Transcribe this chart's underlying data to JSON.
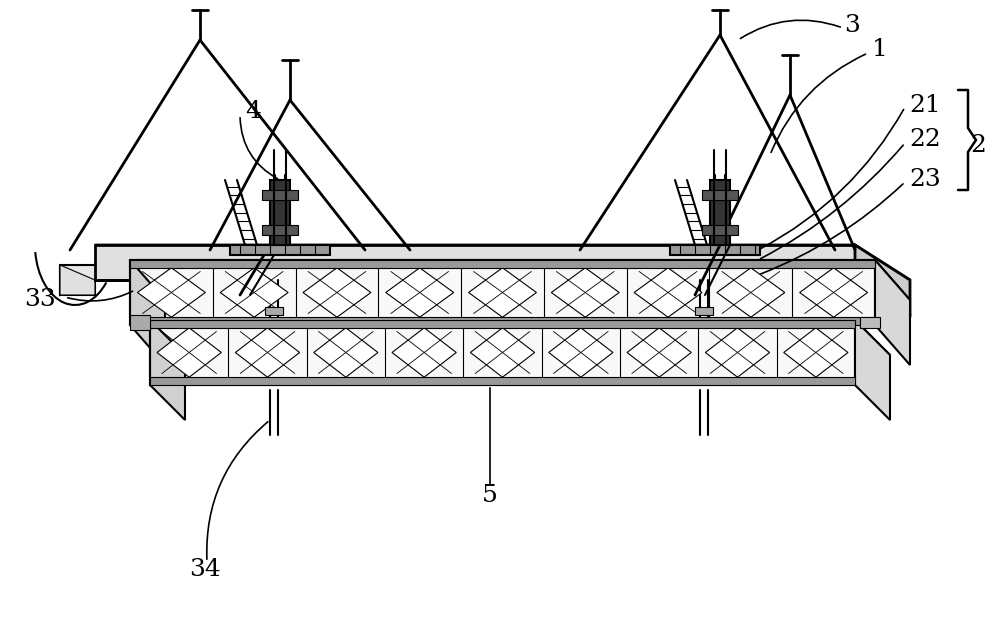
{
  "bg_color": "#ffffff",
  "line_color": "#000000",
  "fig_w": 10.0,
  "fig_h": 6.35,
  "dpi": 100
}
